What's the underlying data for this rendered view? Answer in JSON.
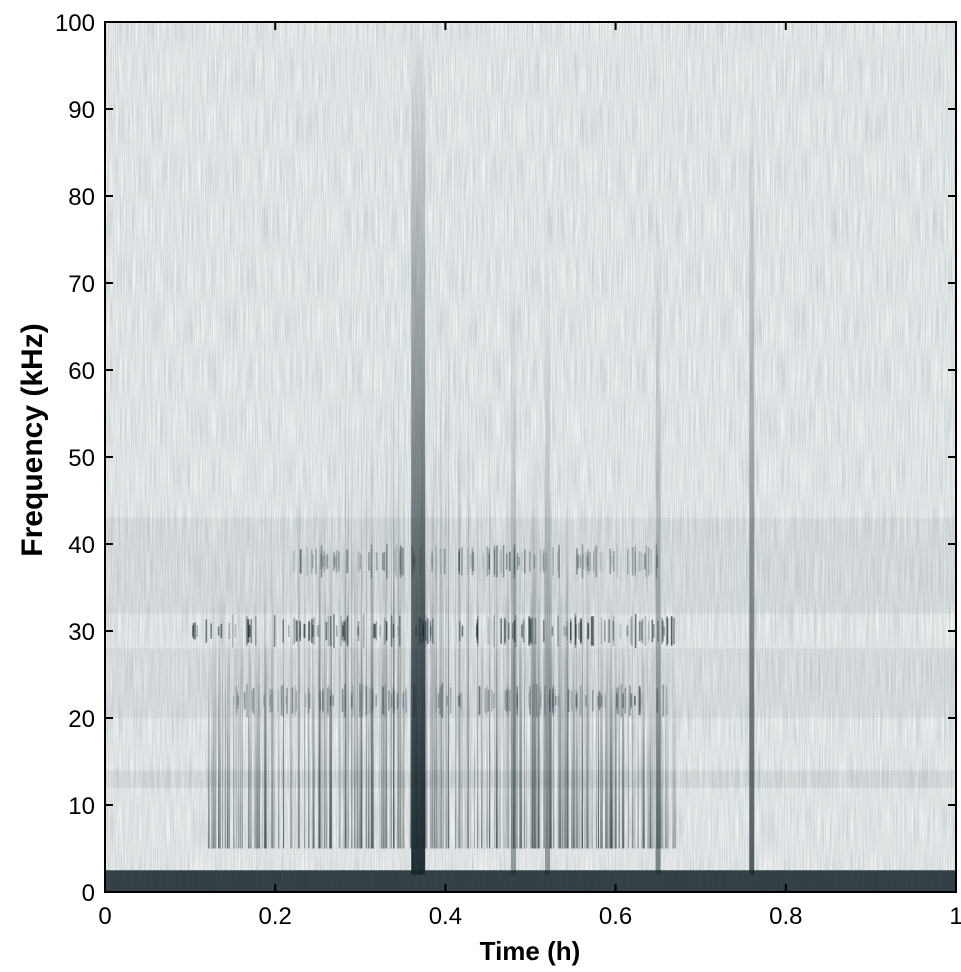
{
  "chart_data": {
    "type": "heatmap",
    "title": "",
    "xlabel": "Time (h)",
    "ylabel": "Frequency (kHz)",
    "xlim": [
      0,
      1
    ],
    "ylim": [
      0,
      100
    ],
    "x_ticks": [
      0,
      0.2,
      0.4,
      0.6,
      0.8,
      1
    ],
    "x_tick_labels": [
      "0",
      "0.2",
      "0.4",
      "0.6",
      "0.8",
      "1"
    ],
    "y_ticks": [
      0,
      10,
      20,
      30,
      40,
      50,
      60,
      70,
      80,
      90,
      100
    ],
    "y_tick_labels": [
      "0",
      "10",
      "20",
      "30",
      "40",
      "50",
      "60",
      "70",
      "80",
      "90",
      "100"
    ],
    "grid": false,
    "colormap": [
      "#ffffff",
      "#0d1a1f"
    ],
    "background_bands": [
      {
        "name": "low-frequency noise",
        "y_range": [
          0,
          2.5
        ],
        "intensity": 0.85
      },
      {
        "name": "band 1",
        "y_range": [
          12,
          14
        ],
        "intensity": 0.07
      },
      {
        "name": "band 2",
        "y_range": [
          20,
          28
        ],
        "intensity": 0.05
      },
      {
        "name": "band 3",
        "y_range": [
          32,
          43
        ],
        "intensity": 0.06
      }
    ],
    "activity_bursts": [
      {
        "x_range": [
          0.1,
          0.67
        ],
        "y_center": 30,
        "intensity": 0.6
      },
      {
        "x_range": [
          0.15,
          0.66
        ],
        "y_center": 22,
        "intensity": 0.4
      },
      {
        "x_range": [
          0.22,
          0.66
        ],
        "y_center": 38,
        "intensity": 0.4
      }
    ],
    "vertical_streaks": [
      {
        "x": 0.368,
        "y_max": 100,
        "intensity": 0.95
      },
      {
        "x": 0.76,
        "y_max": 92,
        "intensity": 0.7
      },
      {
        "x": 0.65,
        "y_max": 78,
        "intensity": 0.5
      },
      {
        "x": 0.52,
        "y_max": 75,
        "intensity": 0.4
      },
      {
        "x": 0.48,
        "y_max": 72,
        "intensity": 0.4
      }
    ]
  }
}
